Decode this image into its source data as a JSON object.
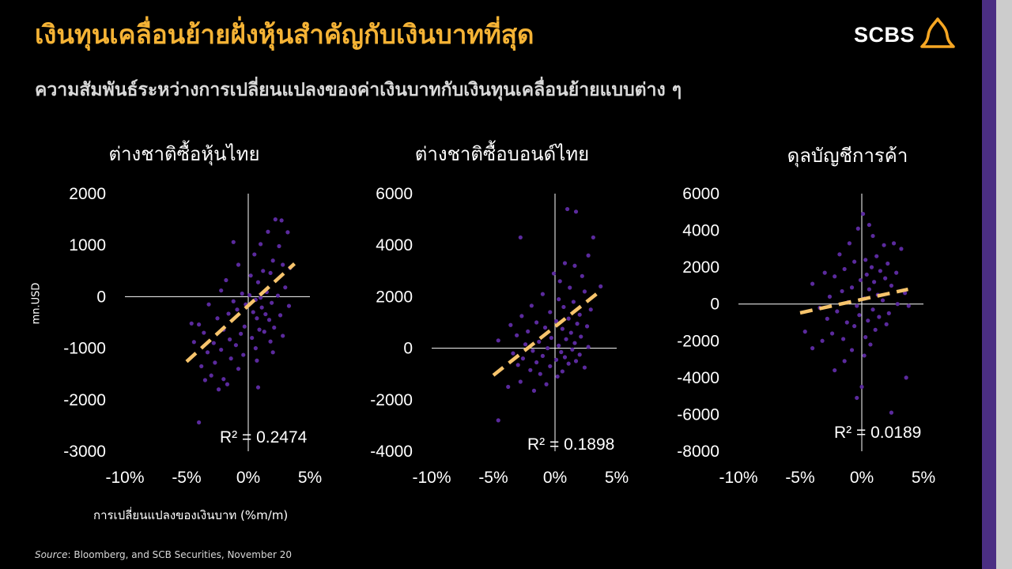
{
  "header": {
    "title": "เงินทุนเคลื่อนย้ายฝั่งหุ้นสำคัญกับเงินบาทที่สุด",
    "subtitle": "ความสัมพันธ์ระหว่างการเปลี่ยนแปลงของค่าเงินบาทกับเงินทุนเคลื่อนย้ายแบบต่าง ๆ"
  },
  "logo": {
    "text": "SCBS"
  },
  "y_unit": "mn.USD",
  "x_caption": "การเปลี่ยนแปลงของเงินบาท (%m/m)",
  "source": {
    "label": "Source",
    "text": ": Bloomberg, and SCB Securities, November 20"
  },
  "colors": {
    "title": "#f5b335",
    "points": "#5b2a9e",
    "trend": "#f7c46c",
    "axis": "#ffffff",
    "side_bar": "#4b2e83"
  },
  "chart_data": [
    {
      "type": "scatter",
      "title": "ต่างชาติซื้อหุ้นไทย",
      "xlabel": "การเปลี่ยนแปลงของเงินบาท (%m/m)",
      "ylabel": "mn.USD",
      "xlim": [
        -0.1,
        0.05
      ],
      "ylim": [
        -3000,
        2000
      ],
      "x_ticks": [
        "-10%",
        "-5%",
        "0%",
        "5%"
      ],
      "y_ticks": [
        "2000",
        "1000",
        "0",
        "-1000",
        "-2000",
        "-3000"
      ],
      "r2_label": "R² = 0.2474",
      "trendline": {
        "x": [
          -0.05,
          0.0375
        ],
        "y": [
          -1260,
          640
        ]
      },
      "points": [
        [
          0.022,
          1500
        ],
        [
          0.027,
          1480
        ],
        [
          0.032,
          1250
        ],
        [
          0.016,
          1260
        ],
        [
          0.01,
          1020
        ],
        [
          -0.012,
          1060
        ],
        [
          0.025,
          980
        ],
        [
          0.02,
          700
        ],
        [
          0.005,
          820
        ],
        [
          0.028,
          620
        ],
        [
          0.034,
          560
        ],
        [
          -0.008,
          620
        ],
        [
          0.012,
          500
        ],
        [
          0.018,
          460
        ],
        [
          0.002,
          410
        ],
        [
          -0.018,
          320
        ],
        [
          0.008,
          280
        ],
        [
          0.03,
          180
        ],
        [
          -0.022,
          120
        ],
        [
          0.015,
          90
        ],
        [
          -0.005,
          60
        ],
        [
          0.001,
          30
        ],
        [
          0.024,
          20
        ],
        [
          0.01,
          -20
        ],
        [
          0.006,
          -60
        ],
        [
          -0.012,
          -90
        ],
        [
          0.019,
          -120
        ],
        [
          -0.002,
          -150
        ],
        [
          0.033,
          -180
        ],
        [
          -0.032,
          -150
        ],
        [
          0.011,
          -210
        ],
        [
          -0.009,
          -250
        ],
        [
          0.004,
          -300
        ],
        [
          0.014,
          -340
        ],
        [
          -0.016,
          -330
        ],
        [
          0.026,
          -360
        ],
        [
          -0.025,
          -420
        ],
        [
          0.007,
          -420
        ],
        [
          0.017,
          -450
        ],
        [
          -0.046,
          -520
        ],
        [
          -0.04,
          -540
        ],
        [
          -0.003,
          -580
        ],
        [
          0.021,
          -600
        ],
        [
          0.009,
          -640
        ],
        [
          -0.02,
          -640
        ],
        [
          0.013,
          -680
        ],
        [
          -0.036,
          -700
        ],
        [
          -0.006,
          -720
        ],
        [
          0.028,
          -760
        ],
        [
          0.003,
          -800
        ],
        [
          -0.015,
          -830
        ],
        [
          0.018,
          -870
        ],
        [
          -0.028,
          -900
        ],
        [
          -0.044,
          -880
        ],
        [
          -0.01,
          -940
        ],
        [
          0.006,
          -1000
        ],
        [
          -0.022,
          -1030
        ],
        [
          -0.033,
          -1080
        ],
        [
          0.02,
          -1080
        ],
        [
          -0.004,
          -1130
        ],
        [
          -0.014,
          -1200
        ],
        [
          0.007,
          -1240
        ],
        [
          -0.027,
          -1280
        ],
        [
          -0.038,
          -1350
        ],
        [
          -0.008,
          -1400
        ],
        [
          -0.03,
          -1530
        ],
        [
          -0.02,
          -1600
        ],
        [
          -0.035,
          -1620
        ],
        [
          -0.017,
          -1700
        ],
        [
          0.008,
          -1760
        ],
        [
          -0.024,
          -1800
        ],
        [
          -0.04,
          -2440
        ]
      ]
    },
    {
      "type": "scatter",
      "title": "ต่างชาติซื้อบอนด์ไทย",
      "xlabel": "การเปลี่ยนแปลงของเงินบาท (%m/m)",
      "ylabel": "mn.USD",
      "xlim": [
        -0.1,
        0.05
      ],
      "ylim": [
        -4000,
        6000
      ],
      "x_ticks": [
        "-10%",
        "-5%",
        "0%",
        "5%"
      ],
      "y_ticks": [
        "6000",
        "4000",
        "2000",
        "0",
        "-2000",
        "-4000"
      ],
      "r2_label": "R² = 0.1898",
      "trendline": {
        "x": [
          -0.05,
          0.0375
        ],
        "y": [
          -1050,
          2250
        ]
      },
      "points": [
        [
          0.01,
          5400
        ],
        [
          0.017,
          5300
        ],
        [
          -0.028,
          4300
        ],
        [
          0.031,
          4300
        ],
        [
          0.027,
          3600
        ],
        [
          0.008,
          3300
        ],
        [
          0.016,
          3200
        ],
        [
          -0.001,
          2900
        ],
        [
          0.022,
          2800
        ],
        [
          0.004,
          2600
        ],
        [
          0.037,
          2400
        ],
        [
          0.012,
          2350
        ],
        [
          0.024,
          2200
        ],
        [
          -0.01,
          2100
        ],
        [
          0.003,
          1900
        ],
        [
          0.015,
          1800
        ],
        [
          -0.019,
          1650
        ],
        [
          0.007,
          1600
        ],
        [
          0.029,
          1500
        ],
        [
          -0.004,
          1400
        ],
        [
          0.02,
          1300
        ],
        [
          -0.027,
          1250
        ],
        [
          0.011,
          1150
        ],
        [
          0.001,
          1050
        ],
        [
          -0.015,
          1000
        ],
        [
          0.018,
          950
        ],
        [
          -0.036,
          900
        ],
        [
          0.026,
          850
        ],
        [
          -0.008,
          800
        ],
        [
          0.006,
          750
        ],
        [
          -0.022,
          650
        ],
        [
          0.013,
          600
        ],
        [
          -0.031,
          500
        ],
        [
          0.021,
          450
        ],
        [
          -0.003,
          400
        ],
        [
          0.009,
          350
        ],
        [
          -0.046,
          300
        ],
        [
          -0.013,
          250
        ],
        [
          0.016,
          200
        ],
        [
          -0.024,
          150
        ],
        [
          0.003,
          100
        ],
        [
          0.027,
          50
        ],
        [
          -0.006,
          0
        ],
        [
          0.014,
          -50
        ],
        [
          -0.018,
          -100
        ],
        [
          0.005,
          -150
        ],
        [
          -0.034,
          -200
        ],
        [
          0.02,
          -250
        ],
        [
          -0.01,
          -300
        ],
        [
          0.008,
          -350
        ],
        [
          -0.026,
          -400
        ],
        [
          0.001,
          -450
        ],
        [
          0.017,
          -500
        ],
        [
          -0.015,
          -550
        ],
        [
          0.011,
          -600
        ],
        [
          -0.03,
          -650
        ],
        [
          -0.004,
          -700
        ],
        [
          0.024,
          -750
        ],
        [
          -0.02,
          -850
        ],
        [
          0.006,
          -900
        ],
        [
          -0.012,
          -1000
        ],
        [
          0.002,
          -1100
        ],
        [
          -0.028,
          -1300
        ],
        [
          -0.007,
          -1400
        ],
        [
          -0.038,
          -1500
        ],
        [
          -0.017,
          -1650
        ],
        [
          -0.046,
          -2800
        ]
      ]
    },
    {
      "type": "scatter",
      "title": "ดุลบัญชีการค้า",
      "xlabel": "การเปลี่ยนแปลงของเงินบาท (%m/m)",
      "ylabel": "mn.USD",
      "xlim": [
        -0.1,
        0.05
      ],
      "ylim": [
        -8000,
        6000
      ],
      "x_ticks": [
        "-10%",
        "-5%",
        "0%",
        "5%"
      ],
      "y_ticks": [
        "6000",
        "4000",
        "2000",
        "0",
        "-2000",
        "-4000",
        "-6000",
        "-8000"
      ],
      "r2_label": "R² = 0.0189",
      "trendline": {
        "x": [
          -0.05,
          0.0375
        ],
        "y": [
          -480,
          800
        ]
      },
      "points": [
        [
          0.001,
          4900
        ],
        [
          -0.003,
          4100
        ],
        [
          0.006,
          4300
        ],
        [
          0.009,
          3700
        ],
        [
          -0.01,
          3300
        ],
        [
          0.026,
          3300
        ],
        [
          0.018,
          3200
        ],
        [
          0.032,
          3000
        ],
        [
          -0.018,
          2700
        ],
        [
          0.012,
          2600
        ],
        [
          0.003,
          2400
        ],
        [
          -0.006,
          2300
        ],
        [
          0.021,
          2200
        ],
        [
          0.008,
          2000
        ],
        [
          -0.014,
          1900
        ],
        [
          0.015,
          1800
        ],
        [
          -0.03,
          1700
        ],
        [
          0.028,
          1700
        ],
        [
          0.004,
          1600
        ],
        [
          -0.022,
          1500
        ],
        [
          0.019,
          1400
        ],
        [
          -0.001,
          1300
        ],
        [
          0.01,
          1200
        ],
        [
          -0.04,
          1100
        ],
        [
          0.024,
          1000
        ],
        [
          -0.008,
          900
        ],
        [
          0.006,
          800
        ],
        [
          -0.016,
          700
        ],
        [
          0.035,
          600
        ],
        [
          0.013,
          500
        ],
        [
          -0.026,
          400
        ],
        [
          0.002,
          300
        ],
        [
          0.017,
          200
        ],
        [
          -0.011,
          100
        ],
        [
          0.029,
          0
        ],
        [
          -0.004,
          -100
        ],
        [
          0.038,
          -100
        ],
        [
          -0.034,
          -200
        ],
        [
          0.009,
          -300
        ],
        [
          -0.02,
          -400
        ],
        [
          0.022,
          -500
        ],
        [
          -0.002,
          -600
        ],
        [
          0.014,
          -700
        ],
        [
          -0.028,
          -800
        ],
        [
          0.005,
          -900
        ],
        [
          -0.012,
          -1000
        ],
        [
          0.02,
          -1100
        ],
        [
          -0.006,
          -1200
        ],
        [
          -0.046,
          -1500
        ],
        [
          0.011,
          -1400
        ],
        [
          -0.024,
          -1600
        ],
        [
          0.003,
          -1800
        ],
        [
          -0.015,
          -1900
        ],
        [
          -0.032,
          -2000
        ],
        [
          0.007,
          -2200
        ],
        [
          -0.04,
          -2400
        ],
        [
          -0.008,
          -2500
        ],
        [
          0.002,
          -2800
        ],
        [
          -0.014,
          -3100
        ],
        [
          -0.022,
          -3600
        ],
        [
          0.036,
          -4000
        ],
        [
          0.0,
          -4500
        ],
        [
          -0.004,
          -5100
        ],
        [
          0.024,
          -5900
        ]
      ]
    }
  ]
}
